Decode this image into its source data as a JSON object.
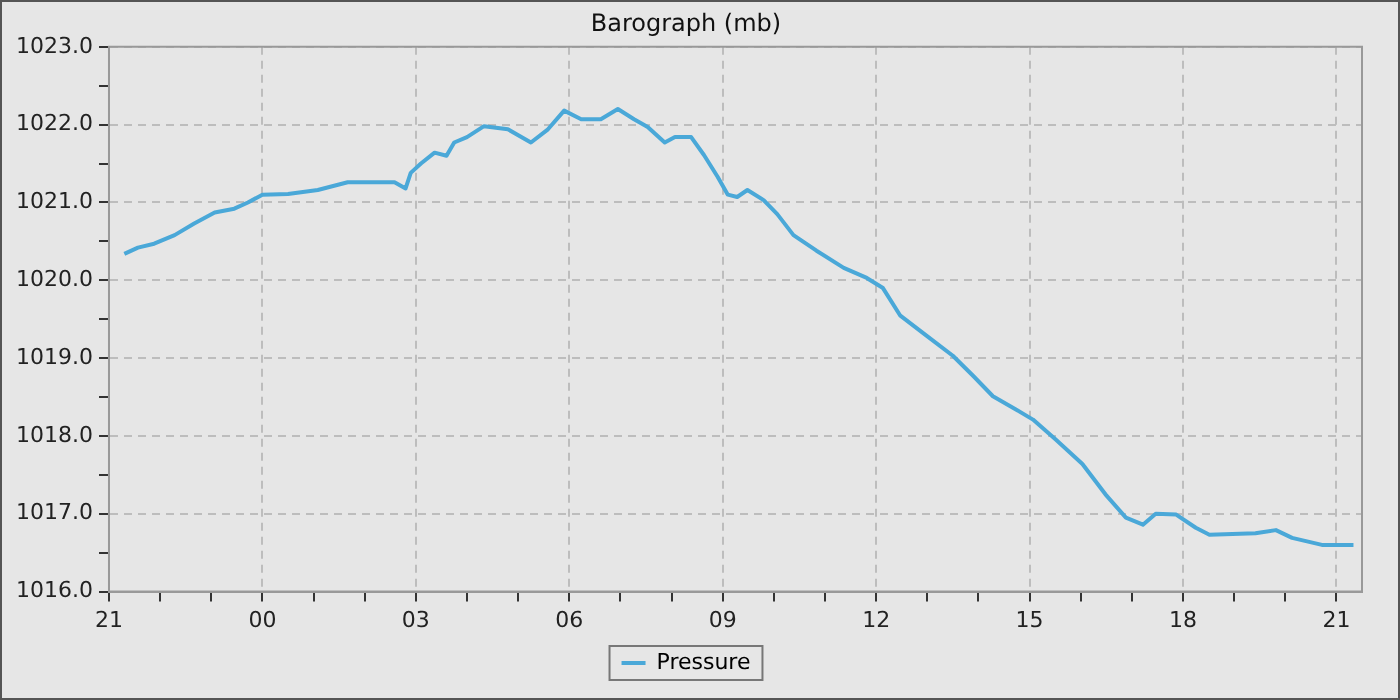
{
  "chart_data": {
    "type": "line",
    "title": "Barograph (mb)",
    "xlim": [
      "2000-01-01T21:00",
      "2000-01-02T21:30"
    ],
    "xticks": [
      {
        "value": "2000-01-01T21:00",
        "label": "21"
      },
      {
        "value": "2000-01-01T22:00",
        "label": null
      },
      {
        "value": "2000-01-01T23:00",
        "label": null
      },
      {
        "value": "2000-01-02T00:00",
        "label": "00"
      },
      {
        "value": "2000-01-02T01:00",
        "label": null
      },
      {
        "value": "2000-01-02T02:00",
        "label": null
      },
      {
        "value": "2000-01-02T03:00",
        "label": "03"
      },
      {
        "value": "2000-01-02T04:00",
        "label": null
      },
      {
        "value": "2000-01-02T05:00",
        "label": null
      },
      {
        "value": "2000-01-02T06:00",
        "label": "06"
      },
      {
        "value": "2000-01-02T07:00",
        "label": null
      },
      {
        "value": "2000-01-02T08:00",
        "label": null
      },
      {
        "value": "2000-01-02T09:00",
        "label": "09"
      },
      {
        "value": "2000-01-02T10:00",
        "label": null
      },
      {
        "value": "2000-01-02T11:00",
        "label": null
      },
      {
        "value": "2000-01-02T12:00",
        "label": "12"
      },
      {
        "value": "2000-01-02T13:00",
        "label": null
      },
      {
        "value": "2000-01-02T14:00",
        "label": null
      },
      {
        "value": "2000-01-02T15:00",
        "label": "15"
      },
      {
        "value": "2000-01-02T16:00",
        "label": null
      },
      {
        "value": "2000-01-02T17:00",
        "label": null
      },
      {
        "value": "2000-01-02T18:00",
        "label": "18"
      },
      {
        "value": "2000-01-02T19:00",
        "label": null
      },
      {
        "value": "2000-01-02T20:00",
        "label": null
      },
      {
        "value": "2000-01-02T21:00",
        "label": "21"
      }
    ],
    "ylim": [
      1016,
      1023
    ],
    "yticks": [
      {
        "value": 1016,
        "label": "1016.0"
      },
      {
        "value": 1016.5,
        "label": null
      },
      {
        "value": 1017,
        "label": "1017.0"
      },
      {
        "value": 1017.5,
        "label": null
      },
      {
        "value": 1018,
        "label": "1018.0"
      },
      {
        "value": 1018.5,
        "label": null
      },
      {
        "value": 1019,
        "label": "1019.0"
      },
      {
        "value": 1019.5,
        "label": null
      },
      {
        "value": 1020,
        "label": "1020.0"
      },
      {
        "value": 1020.5,
        "label": null
      },
      {
        "value": 1021,
        "label": "1021.0"
      },
      {
        "value": 1021.5,
        "label": null
      },
      {
        "value": 1022,
        "label": "1022.0"
      },
      {
        "value": 1022.5,
        "label": null
      },
      {
        "value": 1023,
        "label": "1023.0"
      }
    ],
    "grid": true,
    "legend": "bottom",
    "marker": "none",
    "line_style": "solid",
    "series": [
      {
        "name": "Pressure",
        "color": "#4aa8d8",
        "x": [
          "2000-01-01T21:18",
          "2000-01-01T21:34",
          "2000-01-01T21:53",
          "2000-01-01T22:17",
          "2000-01-01T22:40",
          "2000-01-01T23:04",
          "2000-01-01T23:27",
          "2000-01-01T23:43",
          "2000-01-02T00:00",
          "2000-01-02T00:30",
          "2000-01-02T01:05",
          "2000-01-02T01:40",
          "2000-01-02T02:35",
          "2000-01-02T02:48",
          "2000-01-02T02:54",
          "2000-01-02T03:06",
          "2000-01-02T03:22",
          "2000-01-02T03:36",
          "2000-01-02T03:45",
          "2000-01-02T04:00",
          "2000-01-02T04:20",
          "2000-01-02T04:48",
          "2000-01-02T05:15",
          "2000-01-02T05:35",
          "2000-01-02T05:54",
          "2000-01-02T06:14",
          "2000-01-02T06:37",
          "2000-01-02T06:57",
          "2000-01-02T07:16",
          "2000-01-02T07:32",
          "2000-01-02T07:52",
          "2000-01-02T08:04",
          "2000-01-02T08:23",
          "2000-01-02T08:38",
          "2000-01-02T08:54",
          "2000-01-02T09:06",
          "2000-01-02T09:17",
          "2000-01-02T09:29",
          "2000-01-02T09:48",
          "2000-01-02T10:04",
          "2000-01-02T10:23",
          "2000-01-02T10:50",
          "2000-01-02T11:22",
          "2000-01-02T11:49",
          "2000-01-02T12:08",
          "2000-01-02T12:28",
          "2000-01-02T12:59",
          "2000-01-02T13:30",
          "2000-01-02T13:54",
          "2000-01-02T14:17",
          "2000-01-02T14:44",
          "2000-01-02T15:04",
          "2000-01-02T15:31",
          "2000-01-02T16:02",
          "2000-01-02T16:29",
          "2000-01-02T16:53",
          "2000-01-02T17:13",
          "2000-01-02T17:28",
          "2000-01-02T17:52",
          "2000-01-02T18:15",
          "2000-01-02T18:31",
          "2000-01-02T19:25",
          "2000-01-02T19:49",
          "2000-01-02T20:08",
          "2000-01-02T20:43",
          "2000-01-02T21:20"
        ],
        "values": [
          1020.34,
          1020.42,
          1020.47,
          1020.58,
          1020.73,
          1020.87,
          1020.92,
          1021.0,
          1021.1,
          1021.11,
          1021.16,
          1021.26,
          1021.26,
          1021.18,
          1021.38,
          1021.5,
          1021.64,
          1021.6,
          1021.77,
          1021.84,
          1021.98,
          1021.94,
          1021.77,
          1021.94,
          1022.18,
          1022.07,
          1022.07,
          1022.2,
          1022.07,
          1021.97,
          1021.77,
          1021.84,
          1021.84,
          1021.61,
          1021.33,
          1021.1,
          1021.07,
          1021.16,
          1021.03,
          1020.85,
          1020.58,
          1020.38,
          1020.16,
          1020.03,
          1019.9,
          1019.55,
          1019.29,
          1019.03,
          1018.77,
          1018.51,
          1018.34,
          1018.21,
          1017.95,
          1017.64,
          1017.25,
          1016.95,
          1016.86,
          1017.0,
          1016.99,
          1016.82,
          1016.73,
          1016.75,
          1016.79,
          1016.69,
          1016.6,
          1016.6
        ]
      }
    ]
  }
}
